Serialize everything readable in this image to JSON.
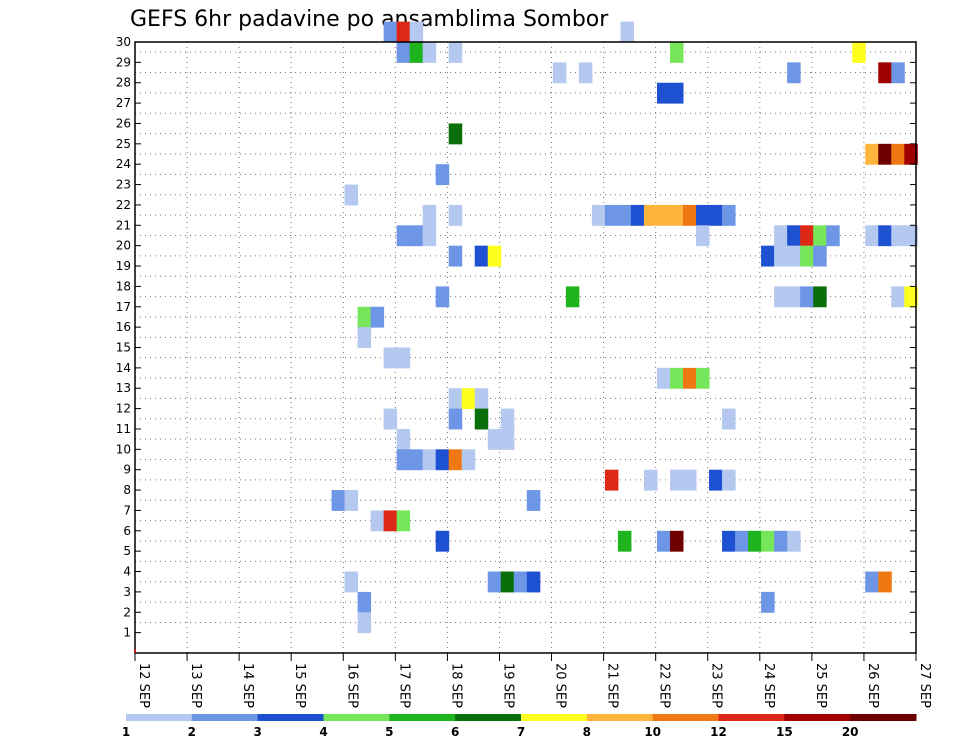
{
  "chart_data": {
    "type": "heatmap",
    "title": "GEFS 6hr padavine po ansamblima Sombor",
    "y_ticks": [
      "1",
      "2",
      "3",
      "4",
      "5",
      "6",
      "7",
      "8",
      "9",
      "10",
      "11",
      "12",
      "13",
      "14",
      "15",
      "16",
      "17",
      "18",
      "19",
      "20",
      "21",
      "22",
      "23",
      "24",
      "25",
      "26",
      "27",
      "28",
      "29",
      "30"
    ],
    "x_ticks": [
      "12 SEP",
      "13 SEP",
      "14 SEP",
      "15 SEP",
      "16 SEP",
      "17 SEP",
      "18 SEP",
      "19 SEP",
      "20 SEP",
      "21 SEP",
      "22 SEP",
      "23 SEP",
      "24 SEP",
      "25 SEP",
      "26 SEP",
      "27 SEP"
    ],
    "x_start_day": 12,
    "x_end_day": 27,
    "y_range": [
      0,
      30
    ],
    "grid": true,
    "legend": {
      "placement": "bottom",
      "colors": [
        "#b4c8f0",
        "#6e96e6",
        "#1e50d2",
        "#78e65a",
        "#1eb41e",
        "#0a6e0a",
        "#ffff1e",
        "#ffb43c",
        "#f07814",
        "#dc2814",
        "#a00000",
        "#6e0000"
      ],
      "labels": [
        "1",
        "2",
        "3",
        "4",
        "5",
        "6",
        "7",
        "8",
        "10",
        "12",
        "15",
        "20"
      ]
    },
    "cells_note": "member, day, color index (0-11)",
    "cells": [
      [
        30,
        16.9,
        1
      ],
      [
        30,
        17.15,
        9
      ],
      [
        30,
        17.4,
        0
      ],
      [
        30,
        21.45,
        0
      ],
      [
        29,
        17.15,
        1
      ],
      [
        29,
        17.4,
        4
      ],
      [
        29,
        17.65,
        0
      ],
      [
        29,
        18.15,
        0
      ],
      [
        29,
        22.4,
        3
      ],
      [
        29,
        25.9,
        6
      ],
      [
        28,
        20.15,
        0
      ],
      [
        28,
        20.65,
        0
      ],
      [
        28,
        24.65,
        1
      ],
      [
        28,
        26.4,
        10
      ],
      [
        28,
        26.65,
        1
      ],
      [
        27,
        22.15,
        2
      ],
      [
        27,
        22.4,
        2
      ],
      [
        25,
        18.15,
        5
      ],
      [
        24,
        26.15,
        7
      ],
      [
        24,
        26.4,
        11
      ],
      [
        24,
        26.65,
        8
      ],
      [
        24,
        26.9,
        10
      ],
      [
        23,
        17.9,
        1
      ],
      [
        22,
        16.15,
        0
      ],
      [
        21,
        17.65,
        0
      ],
      [
        21,
        18.15,
        0
      ],
      [
        21,
        20.9,
        0
      ],
      [
        21,
        21.15,
        1
      ],
      [
        21,
        21.4,
        1
      ],
      [
        21,
        21.65,
        2
      ],
      [
        21,
        21.9,
        7
      ],
      [
        21,
        22.15,
        7
      ],
      [
        21,
        22.4,
        7
      ],
      [
        21,
        22.65,
        8
      ],
      [
        21,
        22.9,
        2
      ],
      [
        21,
        23.15,
        2
      ],
      [
        21,
        23.4,
        1
      ],
      [
        20,
        17.15,
        1
      ],
      [
        20,
        17.4,
        1
      ],
      [
        20,
        17.65,
        0
      ],
      [
        20,
        22.9,
        0
      ],
      [
        20,
        24.4,
        0
      ],
      [
        20,
        24.65,
        2
      ],
      [
        20,
        24.9,
        9
      ],
      [
        20,
        25.15,
        3
      ],
      [
        20,
        25.4,
        1
      ],
      [
        20,
        26.15,
        0
      ],
      [
        20,
        26.4,
        2
      ],
      [
        20,
        26.65,
        0
      ],
      [
        20,
        26.9,
        0
      ],
      [
        19,
        18.15,
        1
      ],
      [
        19,
        18.65,
        2
      ],
      [
        19,
        18.9,
        6
      ],
      [
        19,
        24.15,
        2
      ],
      [
        19,
        24.4,
        0
      ],
      [
        19,
        24.65,
        0
      ],
      [
        19,
        24.9,
        3
      ],
      [
        19,
        25.15,
        1
      ],
      [
        17,
        17.9,
        1
      ],
      [
        17,
        20.4,
        4
      ],
      [
        17,
        24.4,
        0
      ],
      [
        17,
        24.65,
        0
      ],
      [
        17,
        24.9,
        1
      ],
      [
        17,
        25.15,
        5
      ],
      [
        17,
        26.65,
        0
      ],
      [
        17,
        26.9,
        6
      ],
      [
        16,
        16.4,
        3
      ],
      [
        16,
        16.65,
        1
      ],
      [
        15,
        16.4,
        0
      ],
      [
        14,
        16.9,
        0
      ],
      [
        14,
        17.15,
        0
      ],
      [
        13,
        22.15,
        0
      ],
      [
        13,
        22.4,
        3
      ],
      [
        13,
        22.65,
        8
      ],
      [
        13,
        22.9,
        3
      ],
      [
        12,
        18.15,
        0
      ],
      [
        12,
        18.4,
        6
      ],
      [
        12,
        18.65,
        0
      ],
      [
        11,
        16.9,
        0
      ],
      [
        11,
        18.15,
        1
      ],
      [
        11,
        18.65,
        5
      ],
      [
        11,
        19.15,
        0
      ],
      [
        11,
        23.4,
        0
      ],
      [
        10,
        17.15,
        0
      ],
      [
        10,
        18.9,
        0
      ],
      [
        10,
        19.15,
        0
      ],
      [
        9,
        17.15,
        1
      ],
      [
        9,
        17.4,
        1
      ],
      [
        9,
        17.65,
        0
      ],
      [
        9,
        17.9,
        2
      ],
      [
        9,
        18.15,
        8
      ],
      [
        9,
        18.4,
        0
      ],
      [
        8,
        21.15,
        9
      ],
      [
        8,
        21.9,
        0
      ],
      [
        8,
        22.4,
        0
      ],
      [
        8,
        22.65,
        0
      ],
      [
        8,
        23.15,
        2
      ],
      [
        8,
        23.4,
        0
      ],
      [
        7,
        15.9,
        1
      ],
      [
        7,
        16.15,
        0
      ],
      [
        7,
        19.65,
        1
      ],
      [
        6,
        16.65,
        0
      ],
      [
        6,
        16.9,
        9
      ],
      [
        6,
        17.15,
        3
      ],
      [
        5,
        17.9,
        2
      ],
      [
        5,
        21.4,
        4
      ],
      [
        5,
        22.15,
        1
      ],
      [
        5,
        22.4,
        11
      ],
      [
        5,
        23.4,
        2
      ],
      [
        5,
        23.65,
        1
      ],
      [
        5,
        23.9,
        4
      ],
      [
        5,
        24.15,
        3
      ],
      [
        5,
        24.4,
        1
      ],
      [
        5,
        24.65,
        0
      ],
      [
        3,
        16.15,
        0
      ],
      [
        3,
        18.9,
        1
      ],
      [
        3,
        19.15,
        5
      ],
      [
        3,
        19.4,
        1
      ],
      [
        3,
        19.65,
        2
      ],
      [
        3,
        26.15,
        1
      ],
      [
        3,
        26.4,
        8
      ],
      [
        2,
        16.4,
        1
      ],
      [
        2,
        24.15,
        1
      ],
      [
        1,
        16.4,
        0
      ]
    ]
  }
}
